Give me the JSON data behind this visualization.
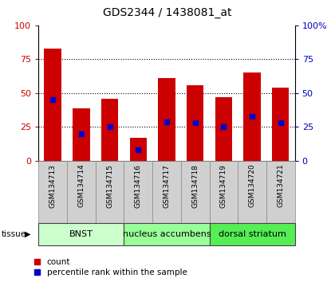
{
  "title": "GDS2344 / 1438081_at",
  "samples": [
    "GSM134713",
    "GSM134714",
    "GSM134715",
    "GSM134716",
    "GSM134717",
    "GSM134718",
    "GSM134719",
    "GSM134720",
    "GSM134721"
  ],
  "counts": [
    83,
    39,
    46,
    17,
    61,
    56,
    47,
    65,
    54
  ],
  "percentiles": [
    45,
    20,
    25,
    8,
    29,
    28,
    25,
    33,
    28
  ],
  "tissues": [
    {
      "label": "BNST",
      "start": 0,
      "end": 3,
      "color": "#ccffcc"
    },
    {
      "label": "nucleus accumbens",
      "start": 3,
      "end": 6,
      "color": "#99ff99"
    },
    {
      "label": "dorsal striatum",
      "start": 6,
      "end": 9,
      "color": "#55ee55"
    }
  ],
  "ylim": [
    0,
    100
  ],
  "yticks": [
    0,
    25,
    50,
    75,
    100
  ],
  "bar_color": "#cc0000",
  "percentile_color": "#0000cc",
  "left_tick_color": "#cc0000",
  "right_tick_color": "#0000bb",
  "grid_lines": [
    25,
    50,
    75
  ],
  "tissue_row_label": "tissue",
  "legend_count_label": "count",
  "legend_percentile_label": "percentile rank within the sample",
  "label_box_color": "#d0d0d0",
  "title_fontsize": 10,
  "tick_fontsize": 8,
  "label_fontsize": 6.5,
  "tissue_fontsize": 8,
  "legend_fontsize": 7.5
}
